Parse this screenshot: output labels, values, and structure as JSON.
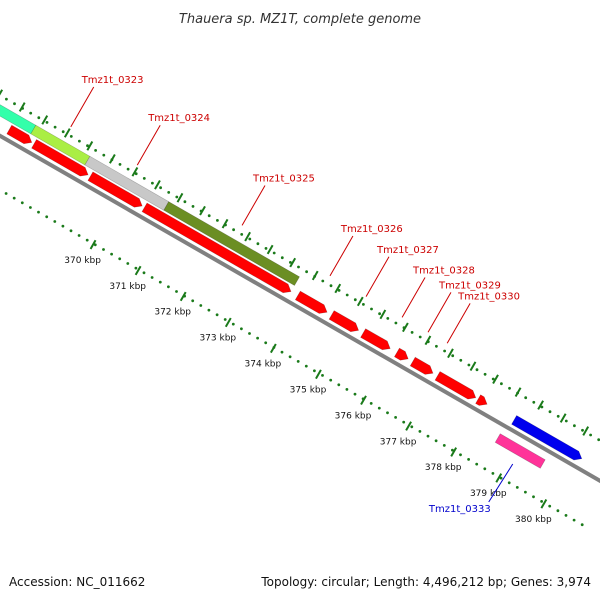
{
  "header": {
    "title": "Thauera sp. MZ1T, complete genome"
  },
  "footer": {
    "accession": "Accession: NC_011662",
    "summary": "Topology: circular; Length: 4,496,212 bp; Genes: 3,974"
  },
  "axis": {
    "ticks": [
      {
        "pos": 370,
        "label": "370 kbp"
      },
      {
        "pos": 371,
        "label": "371 kbp"
      },
      {
        "pos": 372,
        "label": "372 kbp"
      },
      {
        "pos": 373,
        "label": "373 kbp"
      },
      {
        "pos": 374,
        "label": "374 kbp"
      },
      {
        "pos": 375,
        "label": "375 kbp"
      },
      {
        "pos": 376,
        "label": "376 kbp"
      },
      {
        "pos": 377,
        "label": "377 kbp"
      },
      {
        "pos": 378,
        "label": "378 kbp"
      },
      {
        "pos": 379,
        "label": "379 kbp"
      },
      {
        "pos": 380,
        "label": "380 kbp"
      }
    ]
  },
  "colors": {
    "cds_red": "#ff0000",
    "track_gray": "#808080",
    "tick_green": "#1a7a1a",
    "label_red": "#cc0000",
    "label_blue": "#0000cc"
  },
  "genes": [
    {
      "name": "Tmz1t_0323",
      "start": 367.9,
      "end": 369.1,
      "color": "#aaee44",
      "label_color": "#cc0000"
    },
    {
      "name": "Tmz1t_0324",
      "start": 369.1,
      "end": 370.85,
      "color": "#c8c8c8",
      "label_color": "#cc0000"
    },
    {
      "name": "Tmz1t_0325",
      "start": 370.85,
      "end": 373.75,
      "color": "#6b8e23",
      "label_color": "#cc0000"
    },
    {
      "name": "Tmz1t_0326",
      "start": 373.9,
      "end": 374.6,
      "color": "#ff0000",
      "label_color": "#cc0000"
    },
    {
      "name": "Tmz1t_0327",
      "start": 374.7,
      "end": 375.4,
      "color": "#ff0000",
      "label_color": "#cc0000"
    },
    {
      "name": "Tmz1t_0328",
      "start": 375.5,
      "end": 376.2,
      "color": "#ff0000",
      "label_color": "#cc0000"
    },
    {
      "name": "Tmz1t_0329",
      "start": 376.3,
      "end": 376.55,
      "color": "#ff0000",
      "label_color": "#cc0000"
    },
    {
      "name": "Tmz1t_0330",
      "start": 376.65,
      "end": 377.05,
      "color": "#ff0000",
      "label_color": "#cc0000"
    },
    {
      "name": "Tmz1t_0333",
      "start": 378.6,
      "end": 379.6,
      "color": "#ff3399",
      "label_color": "#0000cc"
    }
  ],
  "cds_segments": [
    {
      "start": 367.5,
      "end": 368.0
    },
    {
      "start": 368.05,
      "end": 369.25
    },
    {
      "start": 369.3,
      "end": 370.45
    },
    {
      "start": 370.5,
      "end": 373.75
    },
    {
      "start": 373.9,
      "end": 374.55
    },
    {
      "start": 374.65,
      "end": 375.25
    },
    {
      "start": 375.35,
      "end": 375.95
    },
    {
      "start": 376.1,
      "end": 376.35
    },
    {
      "start": 376.45,
      "end": 376.9
    },
    {
      "start": 377.0,
      "end": 377.85
    },
    {
      "start": 377.9,
      "end": 378.1
    }
  ],
  "blue_gene": {
    "start": 378.7,
    "end": 380.2,
    "color": "#0000ee"
  },
  "cyan_gene": {
    "start": 367.0,
    "end": 367.9,
    "color": "#33ffaa"
  }
}
